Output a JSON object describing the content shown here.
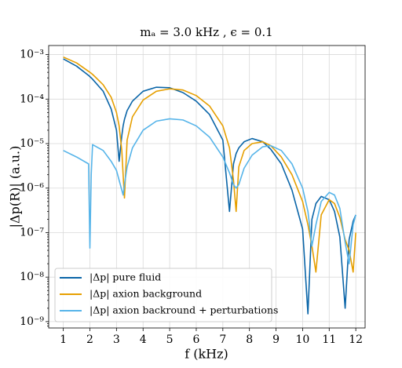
{
  "chart_data": {
    "type": "line",
    "title": "mₐ = 3.0 kHz , ϵ = 0.1",
    "x_label": "f (kHz)",
    "y_label": "|Δp(R)| (a.u.)",
    "log_y": true,
    "grid": true,
    "legend": "lower left",
    "xlim": [
      0.45,
      12.35
    ],
    "ylim": [
      7.2e-10,
      0.0016
    ],
    "xticks": [
      1,
      2,
      3,
      4,
      5,
      6,
      7,
      8,
      9,
      10,
      11,
      12
    ],
    "yticks": [
      {
        "value": 1e-09,
        "label": "10⁻⁹"
      },
      {
        "value": 1e-08,
        "label": "10⁻⁸"
      },
      {
        "value": 1e-07,
        "label": "10⁻⁷"
      },
      {
        "value": 1e-06,
        "label": "10⁻⁶"
      },
      {
        "value": 1e-05,
        "label": "10⁻⁵"
      },
      {
        "value": 0.0001,
        "label": "10⁻⁴"
      },
      {
        "value": 0.001,
        "label": "10⁻³"
      }
    ],
    "x": [
      1,
      1.5,
      1.95,
      2,
      2.05,
      2.1,
      2.5,
      2.8,
      3.0,
      3.1,
      3.2,
      3.25,
      3.3,
      3.4,
      3.6,
      4.0,
      4.5,
      5.0,
      5.5,
      6.0,
      6.5,
      7.0,
      7.25,
      7.4,
      7.5,
      7.6,
      7.8,
      8.1,
      8.5,
      8.8,
      9.2,
      9.6,
      10.0,
      10.2,
      10.35,
      10.5,
      10.7,
      11.0,
      11.2,
      11.4,
      11.6,
      11.75,
      11.9,
      12.0
    ],
    "series": [
      {
        "name": "|Δp| pure fluid",
        "color": "#0a65a8",
        "values": [
          0.0008,
          0.00055,
          0.00034,
          0.00032,
          0.0003,
          0.00028,
          0.00015,
          6e-05,
          2e-05,
          4e-06,
          1.5e-05,
          2.5e-05,
          3.5e-05,
          5.5e-05,
          9e-05,
          0.00015,
          0.000185,
          0.00018,
          0.00014,
          9e-05,
          4.5e-05,
          1.2e-05,
          3e-07,
          3.5e-06,
          6e-06,
          8e-06,
          1.1e-05,
          1.3e-05,
          1.1e-05,
          7.5e-06,
          3.5e-06,
          9e-07,
          1.2e-07,
          1.5e-09,
          2e-07,
          4.5e-07,
          6.5e-07,
          5.5e-07,
          3e-07,
          8e-08,
          2e-09,
          7e-08,
          1.8e-07,
          2.5e-07
        ]
      },
      {
        "name": "|Δp| axion background",
        "color": "#e69f00",
        "values": [
          0.00088,
          0.00065,
          0.00042,
          0.0004,
          0.00038,
          0.00036,
          0.00021,
          0.00011,
          5e-05,
          2.5e-05,
          7e-06,
          2e-06,
          6e-07,
          1.2e-05,
          4e-05,
          9.5e-05,
          0.00015,
          0.00017,
          0.00016,
          0.00012,
          7e-05,
          2.5e-05,
          8e-06,
          1.5e-06,
          3e-07,
          3e-06,
          7e-06,
          1e-05,
          1.1e-05,
          9e-06,
          5e-06,
          2e-06,
          5e-07,
          1.5e-07,
          5e-08,
          1.3e-08,
          2.5e-07,
          5.5e-07,
          4.5e-07,
          2.2e-07,
          7e-08,
          4e-08,
          1.3e-08,
          1e-07
        ]
      },
      {
        "name": "|Δp| axion backround + perturbations",
        "color": "#56b4e9",
        "values": [
          7e-06,
          5e-06,
          3.5e-06,
          4.5e-08,
          2e-06,
          9.5e-06,
          7e-06,
          4e-06,
          2.5e-06,
          1.5e-06,
          9e-07,
          7e-07,
          1.2e-06,
          3e-06,
          8e-06,
          2e-05,
          3.2e-05,
          3.6e-05,
          3.4e-05,
          2.5e-05,
          1.4e-05,
          5e-06,
          2.2e-06,
          1.2e-06,
          1e-06,
          1.2e-06,
          2.8e-06,
          5.5e-06,
          8.5e-06,
          9e-06,
          7e-06,
          3.5e-06,
          1e-06,
          3e-07,
          5e-08,
          1.5e-07,
          5e-07,
          8e-07,
          7e-07,
          3.5e-07,
          6e-08,
          2e-08,
          1.5e-07,
          2.5e-07
        ]
      }
    ]
  }
}
